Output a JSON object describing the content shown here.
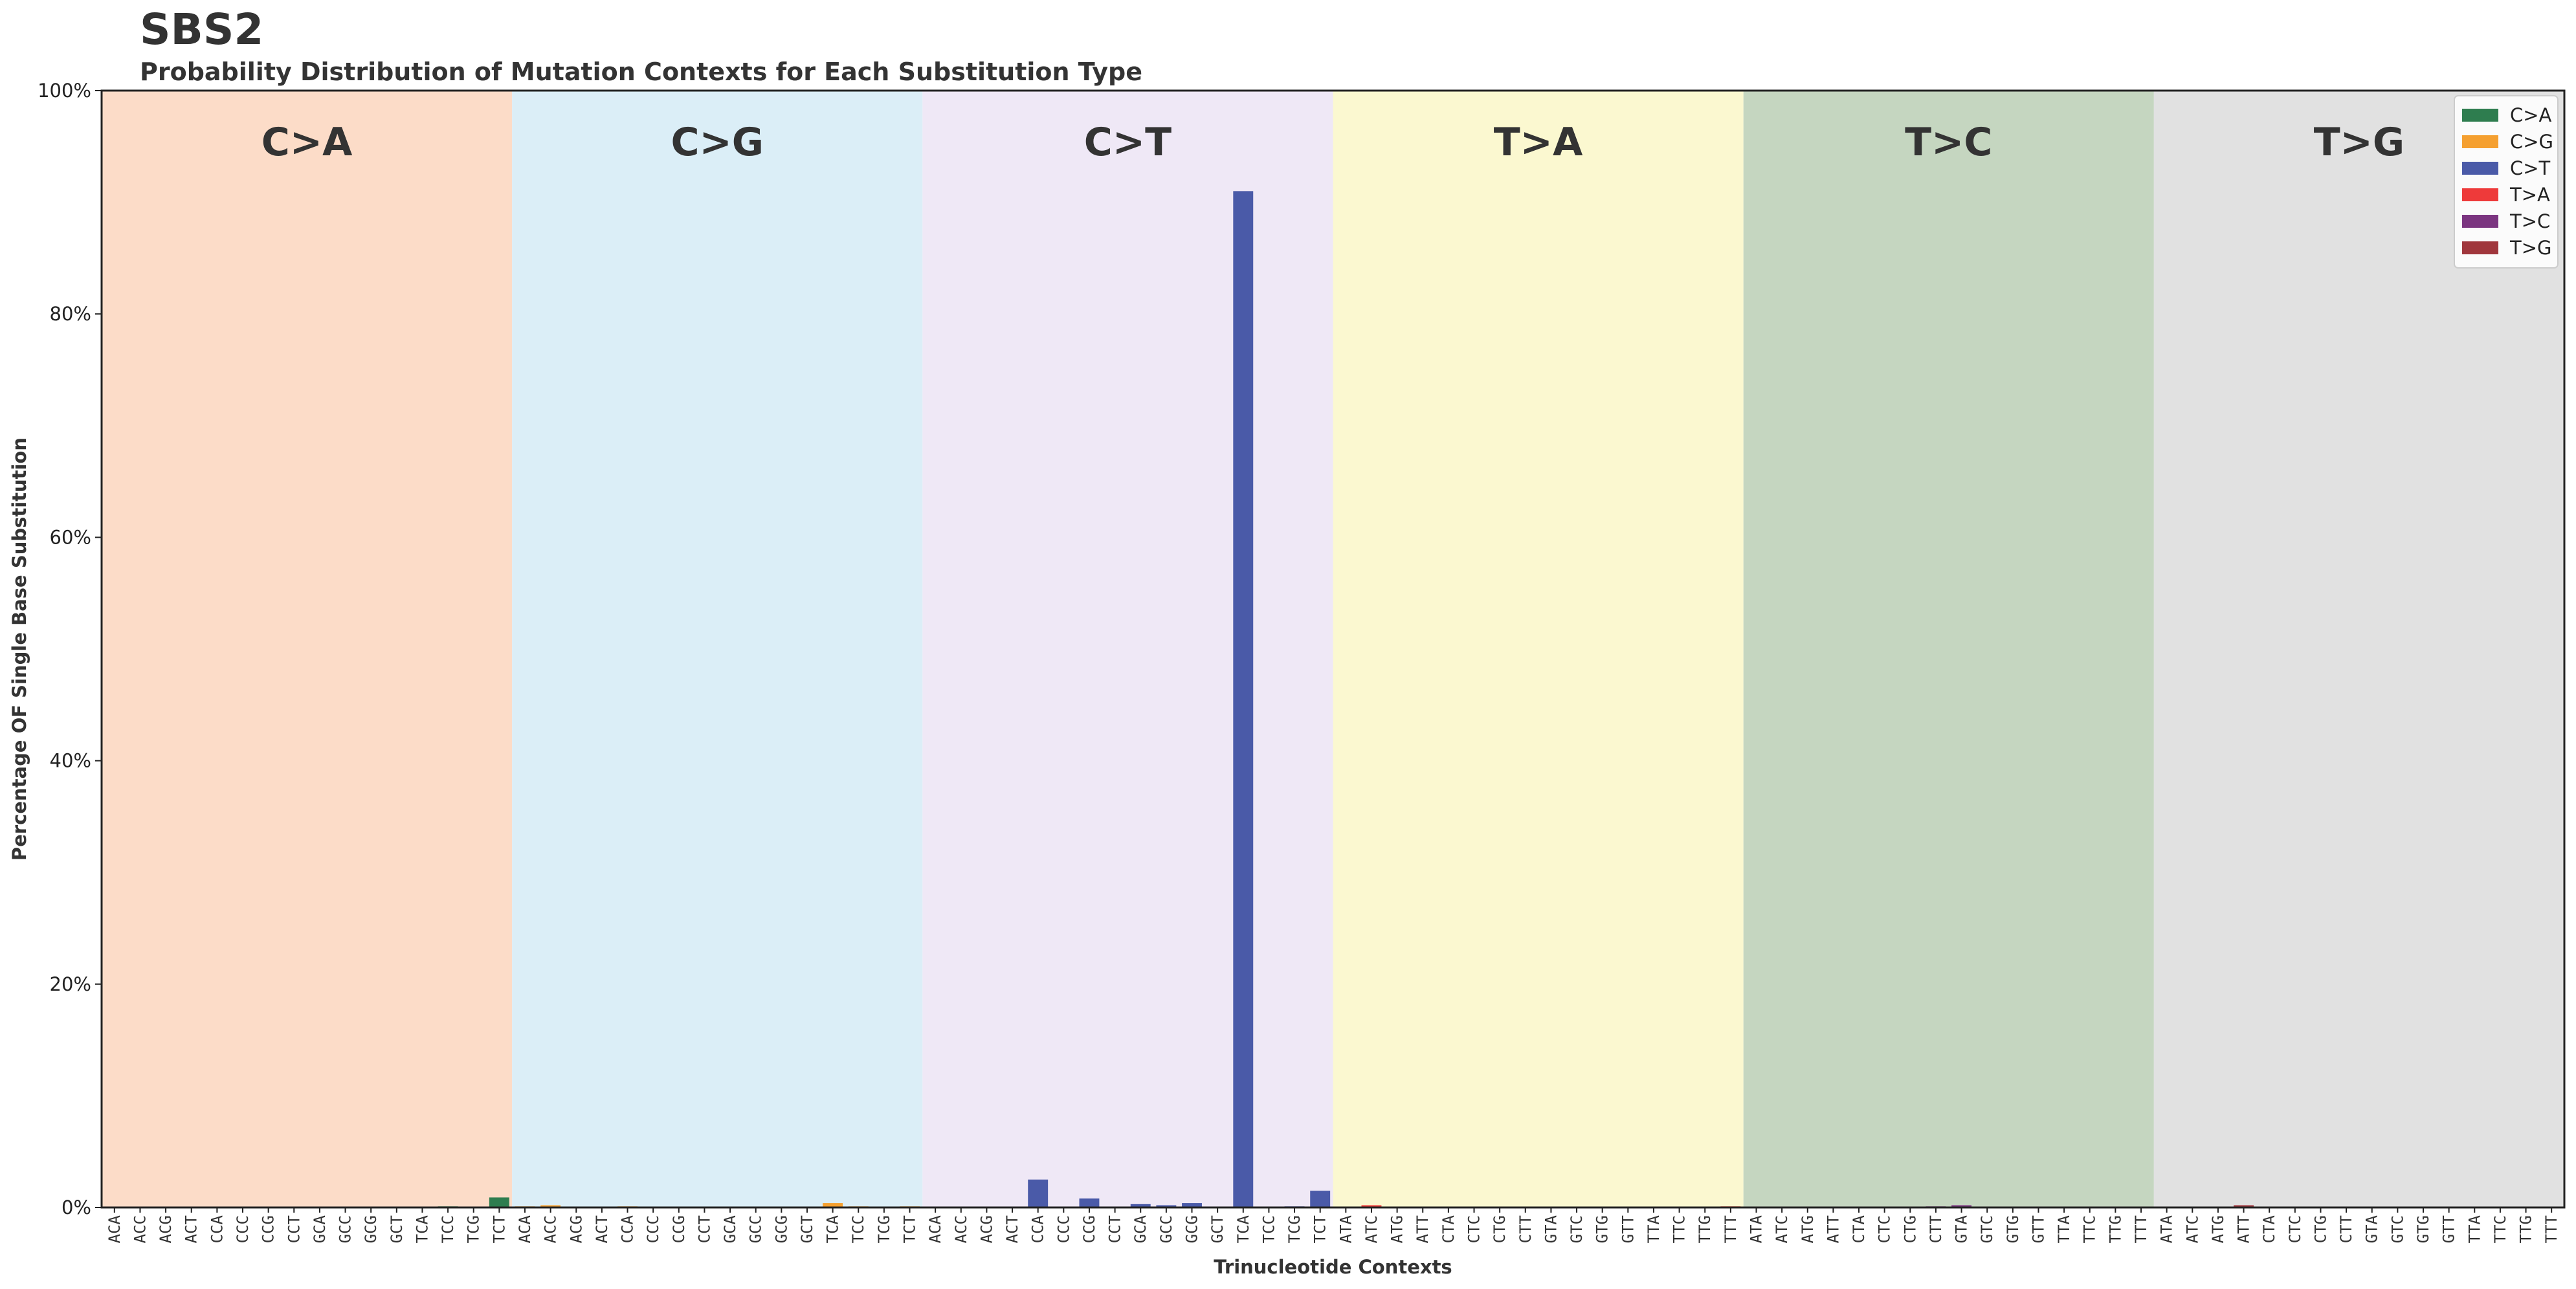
{
  "chart_data": {
    "type": "bar",
    "title": "SBS2",
    "subtitle": "Probability Distribution of Mutation Contexts for Each Substitution Type",
    "xlabel": "Trinucleotide Contexts",
    "ylabel": "Percentage OF Single Base Substitution",
    "ylim": [
      0,
      100
    ],
    "yticks": [
      "0%",
      "20%",
      "40%",
      "60%",
      "80%",
      "100%"
    ],
    "grid": false,
    "legend_position": "top-right",
    "groups": [
      {
        "name": "C>A",
        "color": "#2e7d4f",
        "background": "#fcdcc8",
        "contexts": [
          "ACA",
          "ACC",
          "ACG",
          "ACT",
          "CCA",
          "CCC",
          "CCG",
          "CCT",
          "GCA",
          "GCC",
          "GCG",
          "GCT",
          "TCA",
          "TCC",
          "TCG",
          "TCT"
        ],
        "values": [
          0,
          0,
          0,
          0,
          0,
          0,
          0,
          0,
          0,
          0,
          0,
          0,
          0,
          0.1,
          0.05,
          0.9
        ]
      },
      {
        "name": "C>G",
        "color": "#f5a030",
        "background": "#dbeef7",
        "contexts": [
          "ACA",
          "ACC",
          "ACG",
          "ACT",
          "CCA",
          "CCC",
          "CCG",
          "CCT",
          "GCA",
          "GCC",
          "GCG",
          "GCT",
          "TCA",
          "TCC",
          "TCG",
          "TCT"
        ],
        "values": [
          0.1,
          0.2,
          0,
          0,
          0.1,
          0,
          0,
          0,
          0,
          0,
          0,
          0,
          0.4,
          0.1,
          0,
          0.1
        ]
      },
      {
        "name": "C>T",
        "color": "#4a5aa8",
        "background": "#efe8f6",
        "contexts": [
          "ACA",
          "ACC",
          "ACG",
          "ACT",
          "CCA",
          "CCC",
          "CCG",
          "CCT",
          "GCA",
          "GCC",
          "GCG",
          "GCT",
          "TCA",
          "TCC",
          "TCG",
          "TCT"
        ],
        "values": [
          0,
          0,
          0,
          0,
          2.5,
          0,
          0.8,
          0,
          0.3,
          0.2,
          0.4,
          0,
          91.0,
          0,
          0.1,
          1.5
        ]
      },
      {
        "name": "T>A",
        "color": "#ee3a3a",
        "background": "#fbf8d0",
        "contexts": [
          "ATA",
          "ATC",
          "ATG",
          "ATT",
          "CTA",
          "CTC",
          "CTG",
          "CTT",
          "GTA",
          "GTC",
          "GTG",
          "GTT",
          "TTA",
          "TTC",
          "TTG",
          "TTT"
        ],
        "values": [
          0,
          0.2,
          0,
          0,
          0,
          0,
          0,
          0,
          0,
          0,
          0,
          0,
          0,
          0,
          0,
          0.1
        ]
      },
      {
        "name": "T>C",
        "color": "#7b3580",
        "background": "#c5d6c0",
        "contexts": [
          "ATA",
          "ATC",
          "ATG",
          "ATT",
          "CTA",
          "CTC",
          "CTG",
          "CTT",
          "GTA",
          "GTC",
          "GTG",
          "GTT",
          "TTA",
          "TTC",
          "TTG",
          "TTT"
        ],
        "values": [
          0,
          0,
          0,
          0,
          0,
          0,
          0,
          0.1,
          0.2,
          0,
          0,
          0,
          0,
          0,
          0,
          0
        ]
      },
      {
        "name": "T>G",
        "color": "#a0363c",
        "background": "#e1e1e1",
        "contexts": [
          "ATA",
          "ATC",
          "ATG",
          "ATT",
          "CTA",
          "CTC",
          "CTG",
          "CTT",
          "GTA",
          "GTC",
          "GTG",
          "GTT",
          "TTA",
          "TTC",
          "TTG",
          "TTT"
        ],
        "values": [
          0,
          0,
          0,
          0.2,
          0,
          0,
          0,
          0,
          0,
          0,
          0,
          0,
          0,
          0,
          0,
          0
        ]
      }
    ]
  }
}
